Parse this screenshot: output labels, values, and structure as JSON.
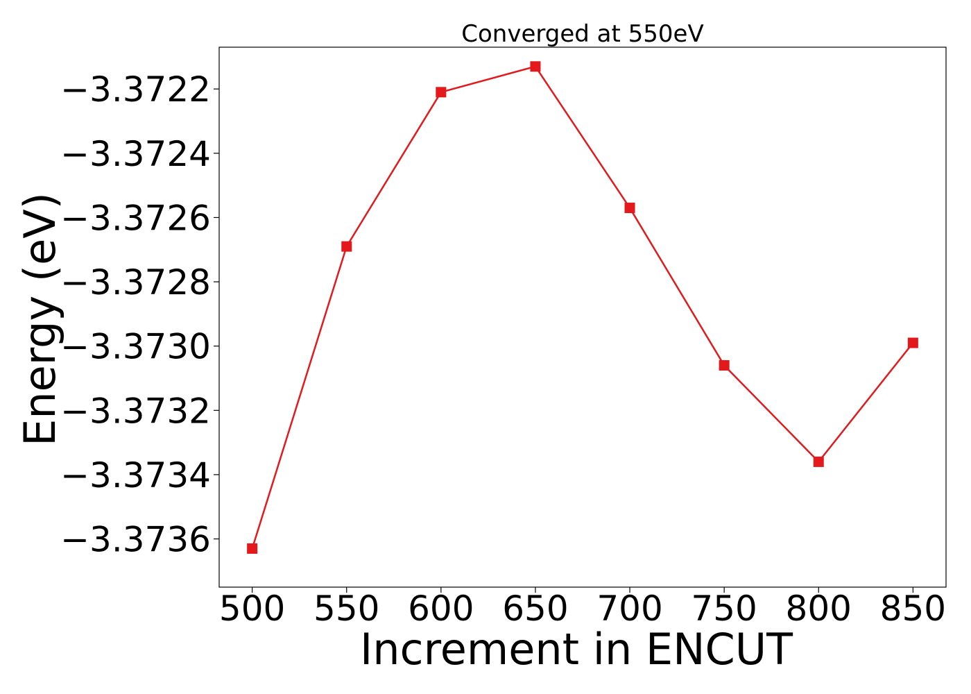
{
  "chart_data": {
    "type": "line",
    "title": "Converged at 550eV",
    "xlabel": "Increment in ENCUT",
    "ylabel": "Energy (eV)",
    "x": [
      500,
      550,
      600,
      650,
      700,
      750,
      800,
      850
    ],
    "series": [
      {
        "values": [
          -3.37363,
          -3.37269,
          -3.37221,
          -3.37213,
          -3.37257,
          -3.37306,
          -3.37336,
          -3.37299
        ],
        "color": "#e3191c",
        "marker": "square"
      }
    ],
    "xlim": [
      482.5,
      867.5
    ],
    "ylim": [
      -3.37375,
      -3.37207
    ],
    "xticks": [
      500,
      550,
      600,
      650,
      700,
      750,
      800,
      850
    ],
    "xtick_labels": [
      "500",
      "550",
      "600",
      "650",
      "700",
      "750",
      "800",
      "850"
    ],
    "yticks": [
      -3.3736,
      -3.3734,
      -3.3732,
      -3.373,
      -3.3728,
      -3.3726,
      -3.3724,
      -3.3722
    ],
    "ytick_labels": [
      "−3.3736",
      "−3.3734",
      "−3.3732",
      "−3.3730",
      "−3.3728",
      "−3.3726",
      "−3.3724",
      "−3.3722"
    ],
    "grid": false,
    "legend": "none"
  }
}
